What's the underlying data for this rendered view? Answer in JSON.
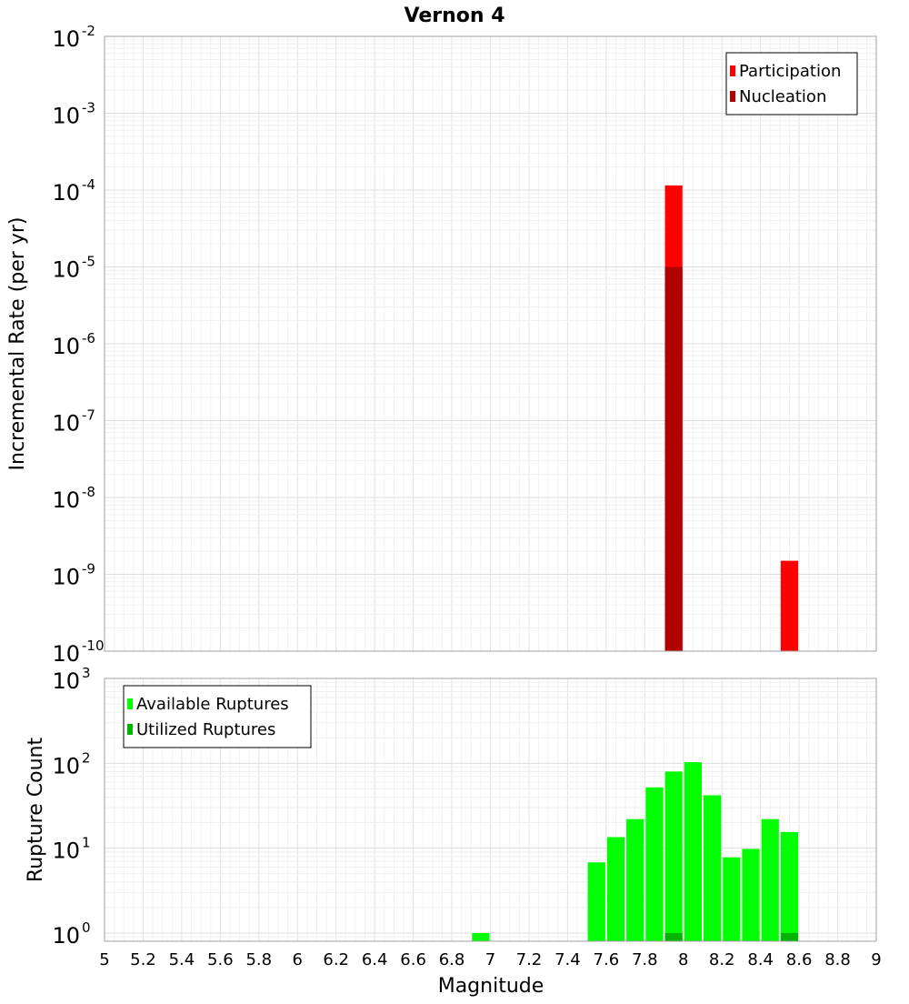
{
  "chart_data": [
    {
      "type": "bar",
      "title": "Vernon 4",
      "ylabel": "Incremental Rate (per yr)",
      "xlabel": "",
      "xlim": [
        5,
        9
      ],
      "ylim": [
        1e-10,
        0.01
      ],
      "yscale": "log",
      "grid": true,
      "legend_position": "top-right",
      "y_ticks": [
        {
          "base": "10",
          "exp": "-2",
          "value": 0.01
        },
        {
          "base": "10",
          "exp": "-3",
          "value": 0.001
        },
        {
          "base": "10",
          "exp": "-4",
          "value": 0.0001
        },
        {
          "base": "10",
          "exp": "-5",
          "value": 1e-05
        },
        {
          "base": "10",
          "exp": "-6",
          "value": 1e-06
        },
        {
          "base": "10",
          "exp": "-7",
          "value": 1e-07
        },
        {
          "base": "10",
          "exp": "-8",
          "value": 1e-08
        },
        {
          "base": "10",
          "exp": "-9",
          "value": 1e-09
        },
        {
          "base": "10",
          "exp": "-10",
          "value": 1e-10
        }
      ],
      "series": [
        {
          "name": "Participation",
          "color": "#ff0000",
          "points": [
            {
              "x": 7.95,
              "y": 0.000115
            },
            {
              "x": 8.55,
              "y": 1.5e-09
            }
          ]
        },
        {
          "name": "Nucleation",
          "color": "#b00000",
          "points": [
            {
              "x": 7.95,
              "y": 1e-05
            }
          ]
        }
      ]
    },
    {
      "type": "bar",
      "title": "",
      "ylabel": "Rupture Count",
      "xlabel": "Magnitude",
      "xlim": [
        5,
        9
      ],
      "ylim": [
        0.8,
        1000
      ],
      "yscale": "log",
      "grid": true,
      "legend_position": "top-left",
      "x_ticks": [
        "5",
        "5.2",
        "5.4",
        "5.6",
        "5.8",
        "6",
        "6.2",
        "6.4",
        "6.6",
        "6.8",
        "7",
        "7.2",
        "7.4",
        "7.6",
        "7.8",
        "8",
        "8.2",
        "8.4",
        "8.6",
        "8.8",
        "9"
      ],
      "y_ticks": [
        {
          "base": "10",
          "exp": "3",
          "value": 1000
        },
        {
          "base": "10",
          "exp": "2",
          "value": 100
        },
        {
          "base": "10",
          "exp": "1",
          "value": 10
        },
        {
          "base": "10",
          "exp": "0",
          "value": 1
        }
      ],
      "series": [
        {
          "name": "Available Ruptures",
          "color": "#00ff00",
          "points": [
            {
              "x": 6.95,
              "y": 1
            },
            {
              "x": 7.55,
              "y": 6.8
            },
            {
              "x": 7.65,
              "y": 13.5
            },
            {
              "x": 7.75,
              "y": 22
            },
            {
              "x": 7.85,
              "y": 52
            },
            {
              "x": 7.95,
              "y": 80
            },
            {
              "x": 8.05,
              "y": 103
            },
            {
              "x": 8.15,
              "y": 42
            },
            {
              "x": 8.25,
              "y": 7.8
            },
            {
              "x": 8.35,
              "y": 9.8
            },
            {
              "x": 8.45,
              "y": 22
            },
            {
              "x": 8.55,
              "y": 15.5
            }
          ]
        },
        {
          "name": "Utilized Ruptures",
          "color": "#00b400",
          "points": [
            {
              "x": 7.95,
              "y": 1
            },
            {
              "x": 8.55,
              "y": 1
            }
          ]
        }
      ]
    }
  ]
}
